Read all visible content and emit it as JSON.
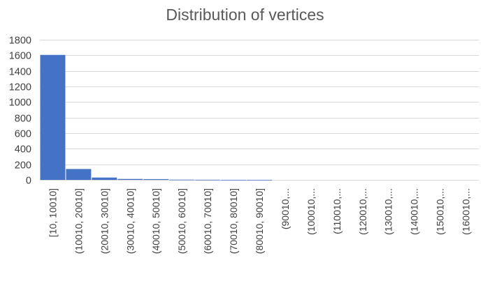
{
  "chart_data": {
    "type": "bar",
    "title": "Distribution of vertices",
    "xlabel": "",
    "ylabel": "",
    "categories": [
      "[10, 10010]",
      "(10010, 20010]",
      "(20010, 30010]",
      "(30010, 40010]",
      "(40010, 50010]",
      "(50010, 60010]",
      "(60010, 70010]",
      "(70010, 80010]",
      "(80010, 90010]",
      "(90010,...",
      "(100010,...",
      "(110010,...",
      "(120010,...",
      "(130010,...",
      "(140010,...",
      "(150010,...",
      "(160010,..."
    ],
    "values": [
      1605,
      140,
      30,
      12,
      10,
      3,
      2,
      1,
      1,
      0,
      0,
      0,
      0,
      0,
      0,
      0,
      0
    ],
    "ylim": [
      0,
      1800
    ],
    "yticks": [
      0,
      200,
      400,
      600,
      800,
      1000,
      1200,
      1400,
      1600,
      1800
    ],
    "grid": true,
    "bar_color": "#4472C4",
    "grid_color": "#D9D9D9",
    "legend": "none"
  }
}
